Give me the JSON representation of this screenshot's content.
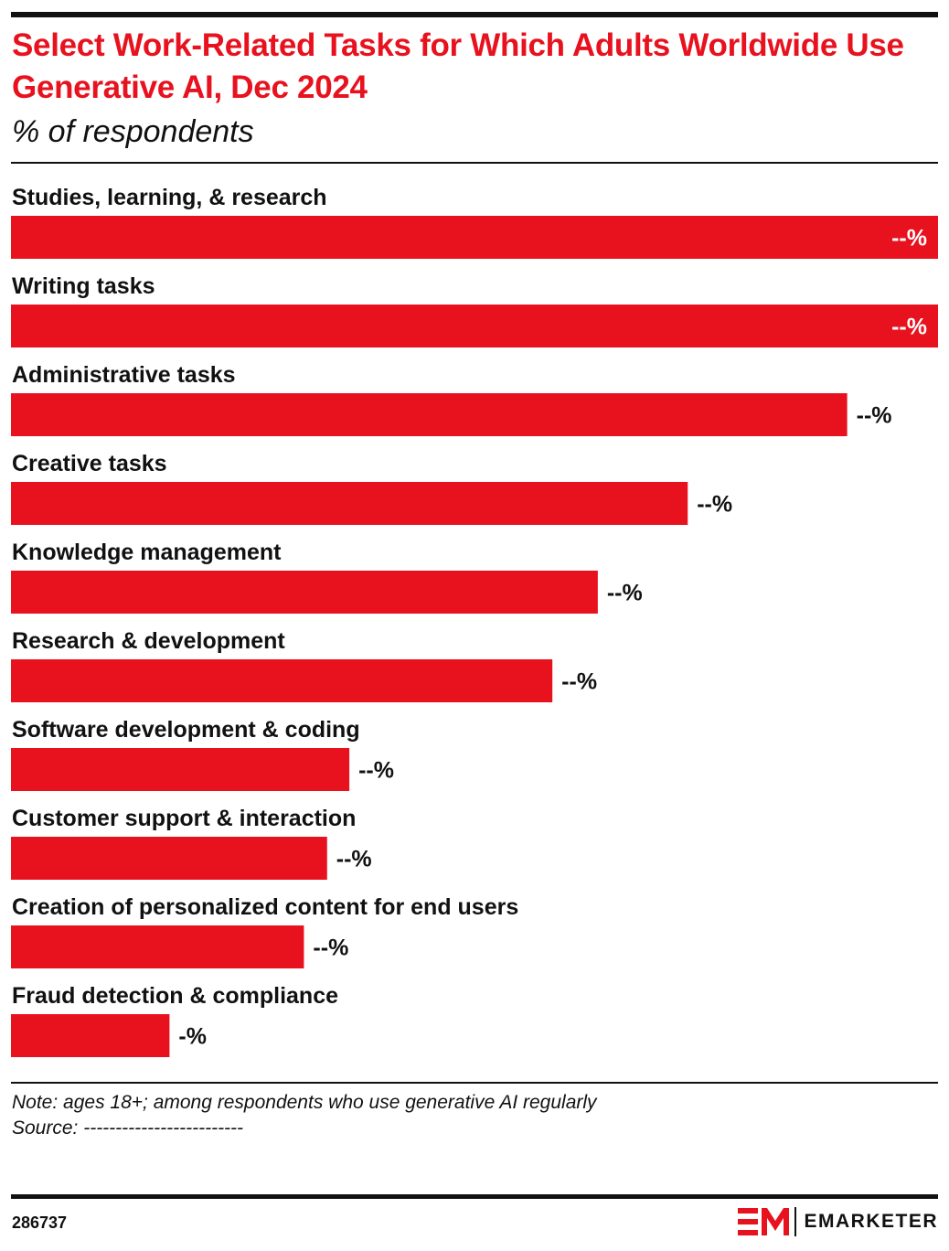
{
  "header": {
    "title": "Select Work-Related Tasks for Which Adults Worldwide Use Generative AI, Dec 2024",
    "subtitle": "% of respondents"
  },
  "chart_data": {
    "type": "bar",
    "orientation": "horizontal",
    "title": "Select Work-Related Tasks for Which Adults Worldwide Use Generative AI, Dec 2024",
    "subtitle": "% of respondents",
    "bar_color": "#e8121f",
    "categories": [
      "Studies, learning, & research",
      "Writing tasks",
      "Administrative tasks",
      "Creative tasks",
      "Knowledge management",
      "Research & development",
      "Software development & coding",
      "Customer support & interaction",
      "Creation of personalized content for end users",
      "Fraud detection & compliance"
    ],
    "values": [
      100,
      100,
      90.2,
      73.0,
      63.3,
      58.4,
      36.5,
      34.1,
      31.6,
      17.1
    ],
    "value_labels": [
      "--%",
      "--%",
      "--%",
      "--%",
      "--%",
      "--%",
      "--%",
      "--%",
      "--%",
      "-%"
    ],
    "xlim": [
      0,
      100
    ],
    "grid": false,
    "legend": "none"
  },
  "footer": {
    "note": "Note: ages 18+; among respondents who use generative AI regularly",
    "source": "Source: -------------------------",
    "chart_id": "286737",
    "brand": "EMARKETER",
    "brand_color": "#e8121f"
  }
}
